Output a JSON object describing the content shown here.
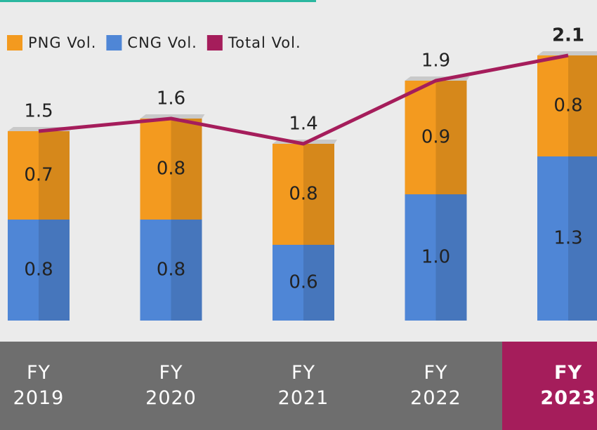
{
  "chart_data": {
    "type": "bar",
    "categories": [
      "FY 2019",
      "FY 2020",
      "FY 2021",
      "FY 2022",
      "FY 2023"
    ],
    "series": [
      {
        "name": "PNG Vol.",
        "type": "bar",
        "color": "#f39a1f",
        "values": [
          0.7,
          0.8,
          0.8,
          0.9,
          0.8
        ],
        "value_labels": [
          "0.7",
          "0.8",
          "0.8",
          "0.9",
          "0.8"
        ]
      },
      {
        "name": "CNG Vol.",
        "type": "bar",
        "color": "#4f86d6",
        "values": [
          0.8,
          0.8,
          0.6,
          1.0,
          1.3
        ],
        "value_labels": [
          "0.8",
          "0.8",
          "0.6",
          "1.0",
          "1.3"
        ]
      },
      {
        "name": "Total Vol.",
        "type": "line",
        "color": "#a51d5b",
        "values": [
          1.5,
          1.6,
          1.4,
          1.9,
          2.1
        ],
        "value_labels": [
          "1.5",
          "1.6",
          "1.4",
          "1.9",
          "2.1"
        ]
      }
    ]
  }
}
